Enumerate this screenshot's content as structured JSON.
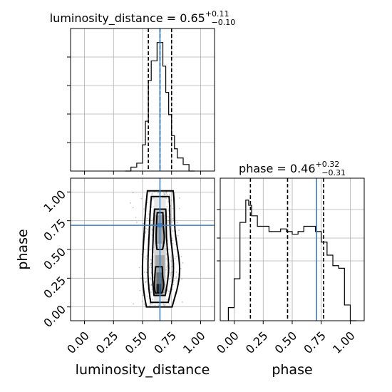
{
  "chart_data": {
    "type": "corner",
    "parameters": [
      "luminosity_distance",
      "phase"
    ],
    "truths": {
      "luminosity_distance": 0.65,
      "phase": 0.71
    },
    "titles": {
      "luminosity_distance": {
        "prefix": "luminosity_distance = ",
        "median": "0.65",
        "plus": "+0.11",
        "minus": "−0.10"
      },
      "phase": {
        "prefix": "phase = ",
        "median": "0.46",
        "plus": "+0.32",
        "minus": "−0.31"
      }
    },
    "quantiles": {
      "luminosity_distance": [
        0.55,
        0.65,
        0.75
      ],
      "phase": [
        0.14,
        0.46,
        0.77
      ]
    },
    "axes": {
      "luminosity_distance": {
        "label": "luminosity_distance",
        "range": [
          -0.12,
          1.12
        ],
        "ticks": [
          "0.00",
          "0.25",
          "0.50",
          "0.75",
          "1.00"
        ],
        "tick_values": [
          0,
          0.25,
          0.5,
          0.75,
          1.0
        ]
      },
      "phase": {
        "label": "phase",
        "range": [
          -0.12,
          1.12
        ],
        "ticks": [
          "0.00",
          "0.25",
          "0.50",
          "0.75",
          "1.00"
        ],
        "tick_values": [
          0,
          0.25,
          0.5,
          0.75,
          1.0
        ]
      }
    },
    "hist_luminosity_distance": {
      "bin_edges": [
        0.35,
        0.4,
        0.45,
        0.5,
        0.525,
        0.55,
        0.575,
        0.6,
        0.625,
        0.65,
        0.675,
        0.7,
        0.725,
        0.75,
        0.775,
        0.8,
        0.85,
        0.9,
        0.95
      ],
      "counts": [
        0.0,
        0.03,
        0.06,
        0.2,
        0.38,
        0.69,
        0.84,
        0.84,
        0.98,
        0.98,
        0.8,
        0.6,
        0.43,
        0.27,
        0.17,
        0.1,
        0.05,
        0.0
      ]
    },
    "hist_phase": {
      "bin_edges": [
        -0.05,
        0.0,
        0.05,
        0.1,
        0.125,
        0.15,
        0.2,
        0.25,
        0.3,
        0.35,
        0.4,
        0.45,
        0.5,
        0.55,
        0.6,
        0.65,
        0.7,
        0.75,
        0.8,
        0.85,
        0.9,
        0.95,
        1.0,
        1.05
      ],
      "counts": [
        0.1,
        0.32,
        0.75,
        0.92,
        0.88,
        0.8,
        0.72,
        0.72,
        0.68,
        0.68,
        0.7,
        0.68,
        0.66,
        0.68,
        0.72,
        0.72,
        0.68,
        0.6,
        0.5,
        0.42,
        0.4,
        0.12,
        0.0
      ]
    }
  }
}
